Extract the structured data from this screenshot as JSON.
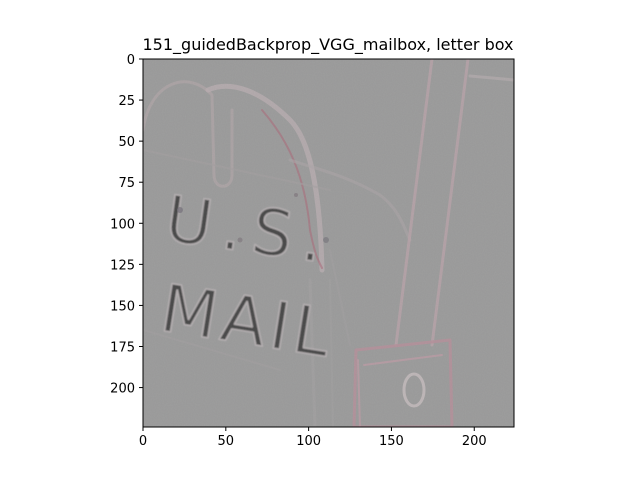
{
  "chart_data": {
    "type": "heatmap",
    "title": "151_guidedBackprop_VGG_mailbox, letter box",
    "xlabel": "",
    "ylabel": "",
    "xlim": [
      0,
      224
    ],
    "ylim": [
      224,
      0
    ],
    "xticks": [
      0,
      50,
      100,
      150,
      200
    ],
    "yticks": [
      0,
      25,
      50,
      75,
      100,
      125,
      150,
      175,
      200
    ],
    "grid": false,
    "legend": "none",
    "image_base_color": "#9a9a9a",
    "image_text": {
      "line1": "U.S.",
      "line2": "MAIL"
    }
  }
}
